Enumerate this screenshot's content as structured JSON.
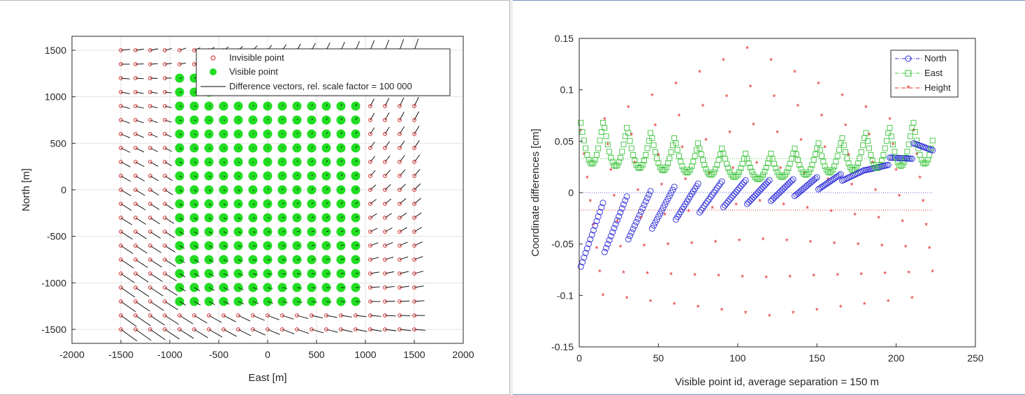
{
  "chart_data": [
    {
      "type": "scatter",
      "title": "",
      "xlabel": "East [m]",
      "ylabel": "North [m]",
      "xlim": [
        -2000,
        2000
      ],
      "ylim": [
        -1650,
        1650
      ],
      "xticks": [
        -2000,
        -1500,
        -1000,
        -500,
        0,
        500,
        1000,
        1500,
        2000
      ],
      "yticks": [
        -1500,
        -1000,
        -500,
        0,
        500,
        1000,
        1500
      ],
      "xtick_labels": [
        "-2000",
        "-1500",
        "-1000",
        "-500",
        "0",
        "500",
        "1000",
        "1500",
        "2000"
      ],
      "ytick_labels": [
        "-1500",
        "-1000",
        "-500",
        "0",
        "500",
        "1000",
        "1500"
      ],
      "grid": true,
      "legend_placement": "top-right",
      "legend": [
        {
          "label": "Invisible point",
          "marker": "circle-open",
          "color": "#d62728"
        },
        {
          "label": "Visible point",
          "marker": "circle-filled",
          "color": "#22dd22"
        },
        {
          "label": "Difference vectors, rel. scale factor = 100 000",
          "marker": "line",
          "color": "#000000"
        }
      ],
      "grid_points": {
        "x_start": -1500,
        "x_end": 1500,
        "y_start": -1500,
        "y_end": 1500,
        "spacing": 150
      },
      "visible_region": {
        "x_range": [
          -900,
          900
        ],
        "y_range": [
          -1200,
          900
        ],
        "extra_top_rows": [
          {
            "y": 1200,
            "x_range": [
              -900,
              -750
            ]
          },
          {
            "y": 1050,
            "x_range": [
              -900,
              -600
            ]
          }
        ]
      },
      "colors": {
        "invisible": "#d62728",
        "visible": "#22dd22",
        "vector": "#000000"
      }
    },
    {
      "type": "scatter",
      "title": "",
      "xlabel": "Visible point id, average separation = 150 m",
      "ylabel": "Coordinate differences [cm]",
      "xlim": [
        0,
        250
      ],
      "ylim": [
        -0.15,
        0.15
      ],
      "xticks": [
        0,
        50,
        100,
        150,
        200,
        250
      ],
      "yticks": [
        -0.15,
        -0.1,
        -0.05,
        0,
        0.05,
        0.1,
        0.15
      ],
      "xtick_labels": [
        "0",
        "50",
        "100",
        "150",
        "200",
        "250"
      ],
      "ytick_labels": [
        "-0.15",
        "-0.1",
        "-0.05",
        "0",
        "0.05",
        "0.1",
        "0.15"
      ],
      "grid": false,
      "legend_placement": "top-right",
      "series": [
        {
          "name": "North",
          "marker": "circle-open",
          "line": "dash-dot",
          "color": "#2b2bd9",
          "mean": 0.0
        },
        {
          "name": "East",
          "marker": "square-open",
          "line": "dash-dot",
          "color": "#3cc43c",
          "mean": 0.033
        },
        {
          "name": "Height",
          "marker": "asterisk",
          "line": "dash-dot",
          "color": "#e02020",
          "mean": -0.017
        }
      ],
      "point_count": 223,
      "visible_groups": 15
    }
  ]
}
